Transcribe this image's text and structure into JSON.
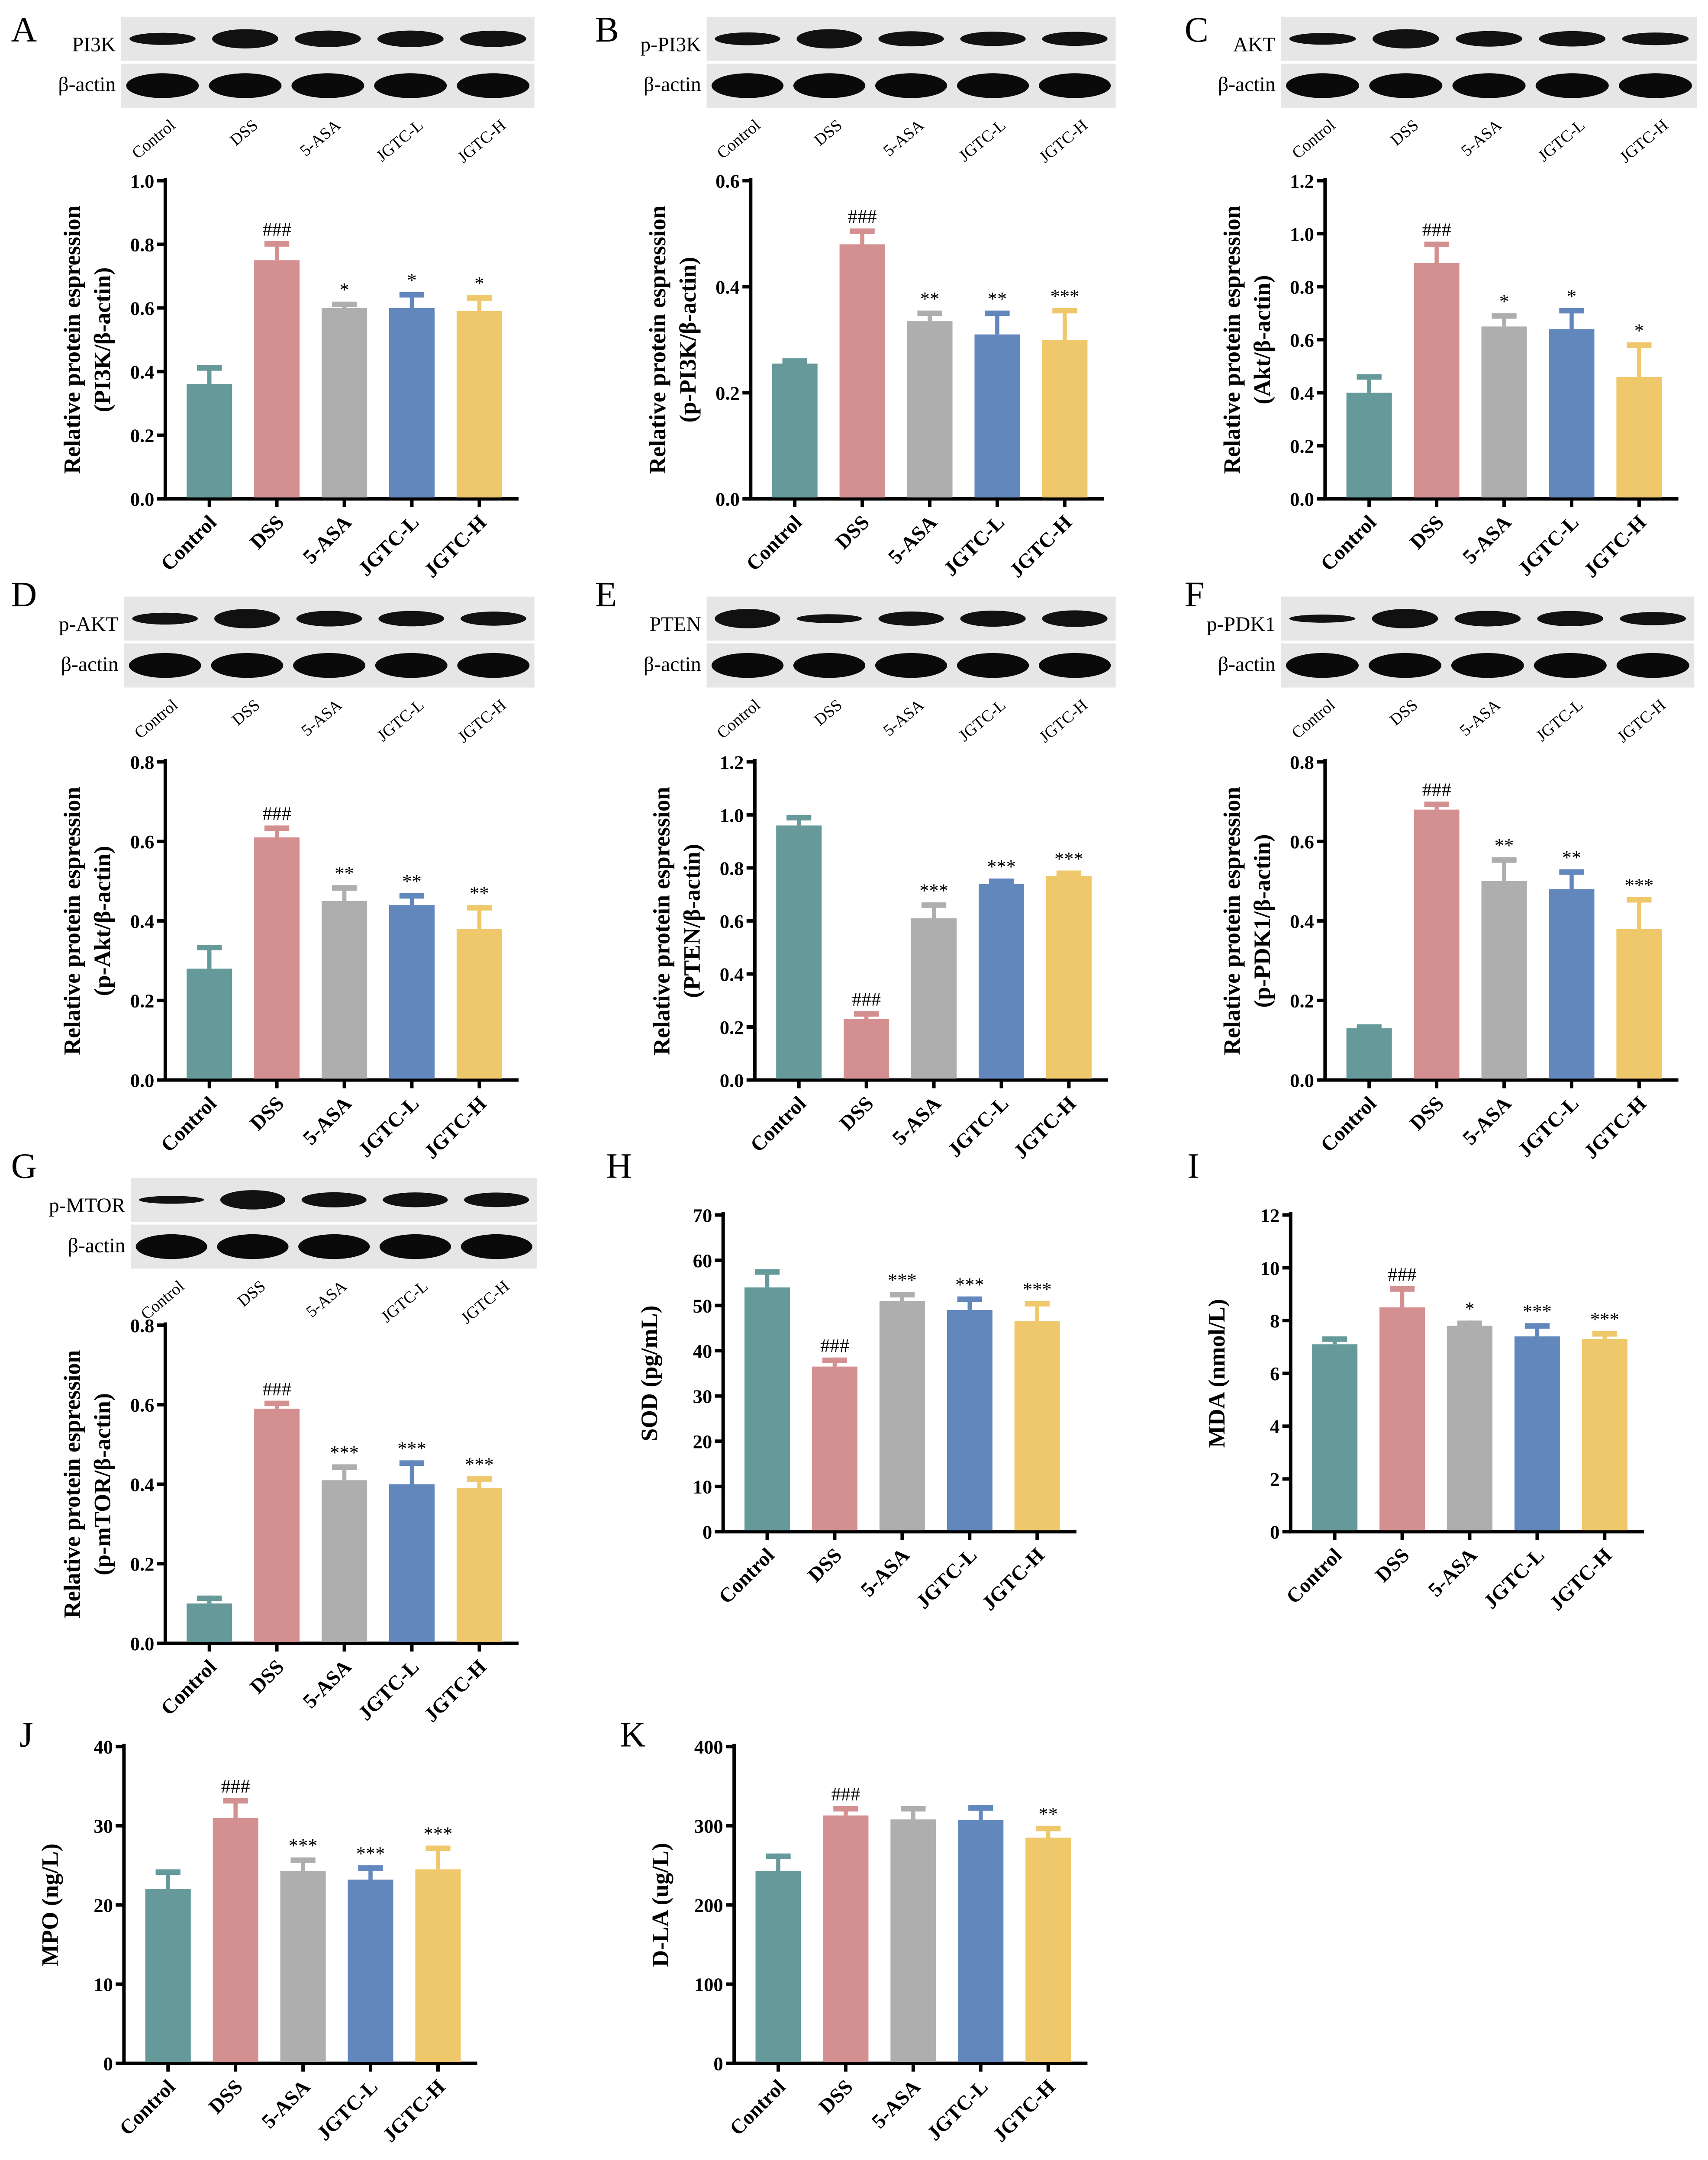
{
  "colors": [
    "#669999",
    "#d49090",
    "#aeaeae",
    "#6187bd",
    "#efc86b"
  ],
  "groups": [
    "Control",
    "DSS",
    "5-ASA",
    "JGTC-L",
    "JGTC-H"
  ],
  "blot_loading_label": "β-actin",
  "chart_data": [
    {
      "panel": "A",
      "type": "bar",
      "blot": "PI3K",
      "ylabel": [
        "Relative protein espression",
        "(PI3K/β-actin)"
      ],
      "ylim": [
        0,
        1.0
      ],
      "ystep": 0.2,
      "decimals": 1,
      "values": [
        0.36,
        0.75,
        0.6,
        0.6,
        0.59
      ],
      "err_top": [
        0.42,
        0.81,
        0.62,
        0.65,
        0.64
      ],
      "sig": [
        "",
        "###",
        "*",
        "*",
        "*"
      ]
    },
    {
      "panel": "B",
      "type": "bar",
      "blot": "p-PI3K",
      "ylabel": [
        "Relative protein espression",
        "(p-PI3K/β-actin)"
      ],
      "ylim": [
        0,
        0.6
      ],
      "ystep": 0.2,
      "decimals": 1,
      "values": [
        0.255,
        0.48,
        0.335,
        0.31,
        0.3
      ],
      "err_top": [
        0.265,
        0.51,
        0.355,
        0.355,
        0.36
      ],
      "sig": [
        "",
        "###",
        "**",
        "**",
        "***"
      ]
    },
    {
      "panel": "C",
      "type": "bar",
      "blot": "AKT",
      "ylabel": [
        "Relative protein espression",
        "(Akt/β-actin)"
      ],
      "ylim": [
        0,
        1.2
      ],
      "ystep": 0.2,
      "decimals": 1,
      "values": [
        0.4,
        0.89,
        0.65,
        0.64,
        0.46
      ],
      "err_top": [
        0.47,
        0.97,
        0.7,
        0.72,
        0.59
      ],
      "sig": [
        "",
        "###",
        "*",
        "*",
        "*"
      ]
    },
    {
      "panel": "D",
      "type": "bar",
      "blot": "p-AKT",
      "ylabel": [
        "Relative protein espression",
        "(p-Akt/β-actin)"
      ],
      "ylim": [
        0,
        0.8
      ],
      "ystep": 0.2,
      "decimals": 1,
      "values": [
        0.28,
        0.61,
        0.45,
        0.44,
        0.38
      ],
      "err_top": [
        0.34,
        0.64,
        0.49,
        0.47,
        0.44
      ],
      "sig": [
        "",
        "###",
        "**",
        "**",
        "**"
      ]
    },
    {
      "panel": "E",
      "type": "bar",
      "blot": "PTEN",
      "ylabel": [
        "Relative protein espression",
        "(PTEN/β-actin)"
      ],
      "ylim": [
        0,
        1.2
      ],
      "ystep": 0.2,
      "decimals": 1,
      "values": [
        0.96,
        0.23,
        0.61,
        0.74,
        0.77
      ],
      "err_top": [
        1.0,
        0.26,
        0.67,
        0.76,
        0.79
      ],
      "sig": [
        "",
        "###",
        "***",
        "***",
        "***"
      ]
    },
    {
      "panel": "F",
      "type": "bar",
      "blot": "p-PDK1",
      "ylabel": [
        "Relative protein espression",
        "(p-PDK1/β-actin)"
      ],
      "ylim": [
        0,
        0.8
      ],
      "ystep": 0.2,
      "decimals": 1,
      "values": [
        0.13,
        0.68,
        0.5,
        0.48,
        0.38
      ],
      "err_top": [
        0.14,
        0.7,
        0.56,
        0.53,
        0.46
      ],
      "sig": [
        "",
        "###",
        "**",
        "**",
        "***"
      ]
    },
    {
      "panel": "G",
      "type": "bar",
      "blot": "p-MTOR",
      "ylabel": [
        "Relative protein espression",
        "(p-mTOR/β-actin)"
      ],
      "ylim": [
        0,
        0.8
      ],
      "ystep": 0.2,
      "decimals": 1,
      "values": [
        0.1,
        0.59,
        0.41,
        0.4,
        0.39
      ],
      "err_top": [
        0.12,
        0.61,
        0.45,
        0.46,
        0.42
      ],
      "sig": [
        "",
        "###",
        "***",
        "***",
        "***"
      ]
    },
    {
      "panel": "H",
      "type": "bar",
      "blot": null,
      "ylabel": [
        "SOD (pg/mL)"
      ],
      "ylim": [
        0,
        70
      ],
      "ystep": 10,
      "decimals": 0,
      "values": [
        54,
        36.5,
        51,
        49,
        46.5
      ],
      "err_top": [
        58,
        38.5,
        53,
        52,
        51
      ],
      "sig": [
        "",
        "###",
        "***",
        "***",
        "***"
      ]
    },
    {
      "panel": "I",
      "type": "bar",
      "blot": null,
      "ylabel": [
        "MDA (nmol/L)"
      ],
      "ylim": [
        0,
        12
      ],
      "ystep": 2,
      "decimals": 0,
      "values": [
        7.1,
        8.5,
        7.8,
        7.4,
        7.3
      ],
      "err_top": [
        7.4,
        9.3,
        8.0,
        7.9,
        7.6
      ],
      "sig": [
        "",
        "###",
        "*",
        "***",
        "***"
      ]
    },
    {
      "panel": "J",
      "type": "bar",
      "blot": null,
      "ylabel": [
        "MPO (ng/L)"
      ],
      "ylim": [
        0,
        40
      ],
      "ystep": 10,
      "decimals": 0,
      "values": [
        22,
        31,
        24.3,
        23.2,
        24.5
      ],
      "err_top": [
        24.5,
        33.5,
        26,
        25,
        27.5
      ],
      "sig": [
        "",
        "###",
        "***",
        "***",
        "***"
      ]
    },
    {
      "panel": "K",
      "type": "bar",
      "blot": null,
      "ylabel": [
        "D-LA (ug/L)"
      ],
      "ylim": [
        0,
        400
      ],
      "ystep": 100,
      "decimals": 0,
      "values": [
        243,
        313,
        308,
        307,
        285
      ],
      "err_top": [
        265,
        325,
        325,
        326,
        300
      ],
      "sig": [
        "",
        "###",
        "",
        "",
        "**"
      ]
    }
  ]
}
